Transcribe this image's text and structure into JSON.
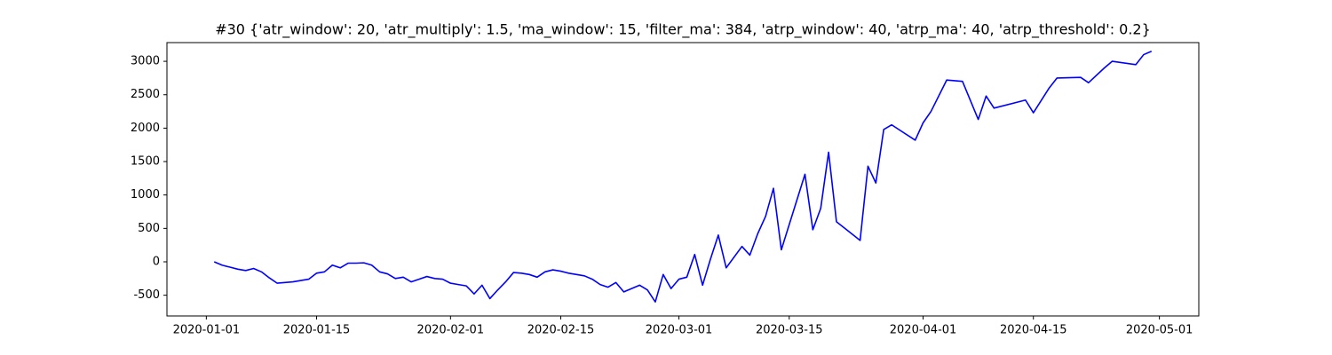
{
  "chart_data": {
    "type": "line",
    "title": "#30 {'atr_window': 20, 'atr_multiply': 1.5, 'ma_window': 15, 'filter_ma': 384, 'atrp_window': 40, 'atrp_ma': 40, 'atrp_threshold': 0.2}",
    "x": [
      "2020-01-02",
      "2020-01-03",
      "2020-01-04",
      "2020-01-05",
      "2020-01-06",
      "2020-01-07",
      "2020-01-08",
      "2020-01-09",
      "2020-01-10",
      "2020-01-11",
      "2020-01-12",
      "2020-01-13",
      "2020-01-14",
      "2020-01-15",
      "2020-01-16",
      "2020-01-17",
      "2020-01-18",
      "2020-01-19",
      "2020-01-20",
      "2020-01-21",
      "2020-01-22",
      "2020-01-23",
      "2020-01-24",
      "2020-01-25",
      "2020-01-26",
      "2020-01-27",
      "2020-01-28",
      "2020-01-29",
      "2020-01-30",
      "2020-01-31",
      "2020-02-01",
      "2020-02-02",
      "2020-02-03",
      "2020-02-04",
      "2020-02-05",
      "2020-02-06",
      "2020-02-07",
      "2020-02-08",
      "2020-02-09",
      "2020-02-10",
      "2020-02-11",
      "2020-02-12",
      "2020-02-13",
      "2020-02-14",
      "2020-02-15",
      "2020-02-16",
      "2020-02-17",
      "2020-02-18",
      "2020-02-19",
      "2020-02-20",
      "2020-02-21",
      "2020-02-22",
      "2020-02-23",
      "2020-02-24",
      "2020-02-25",
      "2020-02-26",
      "2020-02-27",
      "2020-02-28",
      "2020-02-29",
      "2020-03-01",
      "2020-03-02",
      "2020-03-03",
      "2020-03-04",
      "2020-03-05",
      "2020-03-06",
      "2020-03-07",
      "2020-03-09",
      "2020-03-10",
      "2020-03-11",
      "2020-03-12",
      "2020-03-13",
      "2020-03-14",
      "2020-03-17",
      "2020-03-18",
      "2020-03-19",
      "2020-03-20",
      "2020-03-21",
      "2020-03-24",
      "2020-03-25",
      "2020-03-26",
      "2020-03-27",
      "2020-03-28",
      "2020-03-31",
      "2020-04-01",
      "2020-04-02",
      "2020-04-04",
      "2020-04-06",
      "2020-04-08",
      "2020-04-09",
      "2020-04-10",
      "2020-04-14",
      "2020-04-15",
      "2020-04-17",
      "2020-04-18",
      "2020-04-21",
      "2020-04-22",
      "2020-04-24",
      "2020-04-25",
      "2020-04-28",
      "2020-04-29",
      "2020-04-30"
    ],
    "series": [
      {
        "color": "#0000ff",
        "values": [
          0,
          -50,
          -80,
          -110,
          -130,
          -100,
          -150,
          -240,
          -320,
          -310,
          -300,
          -280,
          -260,
          -170,
          -150,
          -50,
          -90,
          -20,
          -20,
          -15,
          -50,
          -150,
          -180,
          -250,
          -230,
          -300,
          -260,
          -220,
          -250,
          -260,
          -320,
          -340,
          -360,
          -480,
          -350,
          -550,
          -420,
          -300,
          -160,
          -170,
          -190,
          -230,
          -150,
          -120,
          -140,
          -170,
          -190,
          -210,
          -260,
          -340,
          -380,
          -310,
          -450,
          -400,
          -350,
          -420,
          -600,
          -190,
          -400,
          -260,
          -230,
          110,
          -350,
          40,
          400,
          -90,
          230,
          100,
          420,
          680,
          1100,
          180,
          1310,
          480,
          800,
          1640,
          600,
          320,
          1430,
          1180,
          1980,
          2050,
          1820,
          2080,
          2250,
          2720,
          2700,
          2130,
          2480,
          2300,
          2420,
          2230,
          2600,
          2750,
          2760,
          2680,
          2900,
          3000,
          2950,
          3100,
          3150
        ]
      }
    ],
    "xlim": [
      "2019-12-27",
      "2020-05-06"
    ],
    "xticks": [
      "2020-01-01",
      "2020-01-15",
      "2020-02-01",
      "2020-02-15",
      "2020-03-01",
      "2020-03-15",
      "2020-04-01",
      "2020-04-15",
      "2020-05-01"
    ],
    "ylim": [
      -810,
      3280
    ],
    "yticks": [
      -500,
      0,
      500,
      1000,
      1500,
      2000,
      2500,
      3000
    ]
  }
}
